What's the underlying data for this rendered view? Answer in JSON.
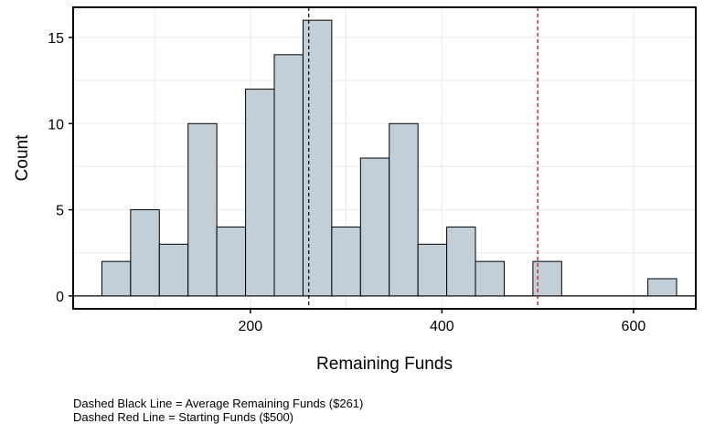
{
  "chart_data": {
    "type": "bar",
    "title": "",
    "xlabel": "Remaining Funds",
    "ylabel": "Count",
    "xlim": [
      15,
      665
    ],
    "ylim": [
      -0.75,
      16.75
    ],
    "bin_width": 30,
    "bins": [
      {
        "start": 45,
        "end": 75,
        "count": 2
      },
      {
        "start": 75,
        "end": 105,
        "count": 5
      },
      {
        "start": 105,
        "end": 135,
        "count": 3
      },
      {
        "start": 135,
        "end": 165,
        "count": 10
      },
      {
        "start": 165,
        "end": 195,
        "count": 4
      },
      {
        "start": 195,
        "end": 225,
        "count": 12
      },
      {
        "start": 225,
        "end": 255,
        "count": 14
      },
      {
        "start": 255,
        "end": 285,
        "count": 16
      },
      {
        "start": 285,
        "end": 315,
        "count": 4
      },
      {
        "start": 315,
        "end": 345,
        "count": 8
      },
      {
        "start": 345,
        "end": 375,
        "count": 10
      },
      {
        "start": 375,
        "end": 405,
        "count": 3
      },
      {
        "start": 405,
        "end": 435,
        "count": 4
      },
      {
        "start": 435,
        "end": 465,
        "count": 2
      },
      {
        "start": 465,
        "end": 495,
        "count": 0
      },
      {
        "start": 495,
        "end": 525,
        "count": 2
      },
      {
        "start": 525,
        "end": 555,
        "count": 0
      },
      {
        "start": 555,
        "end": 585,
        "count": 0
      },
      {
        "start": 585,
        "end": 615,
        "count": 0
      },
      {
        "start": 615,
        "end": 645,
        "count": 1
      }
    ],
    "x_ticks": [
      200,
      400,
      600
    ],
    "y_ticks": [
      0,
      5,
      10,
      15
    ],
    "reference_lines": [
      {
        "x": 261,
        "color": "#000000",
        "style": "dashed"
      },
      {
        "x": 500,
        "color": "#cc0000",
        "style": "dashed"
      }
    ],
    "bar_fill": "#c3cfd8",
    "bar_stroke": "#000000",
    "grid": true,
    "grid_color": "#ebebeb"
  },
  "captions": {
    "line1": "Dashed Black Line = Average Remaining Funds ($261)",
    "line2": "Dashed Red Line = Starting Funds ($500)"
  }
}
